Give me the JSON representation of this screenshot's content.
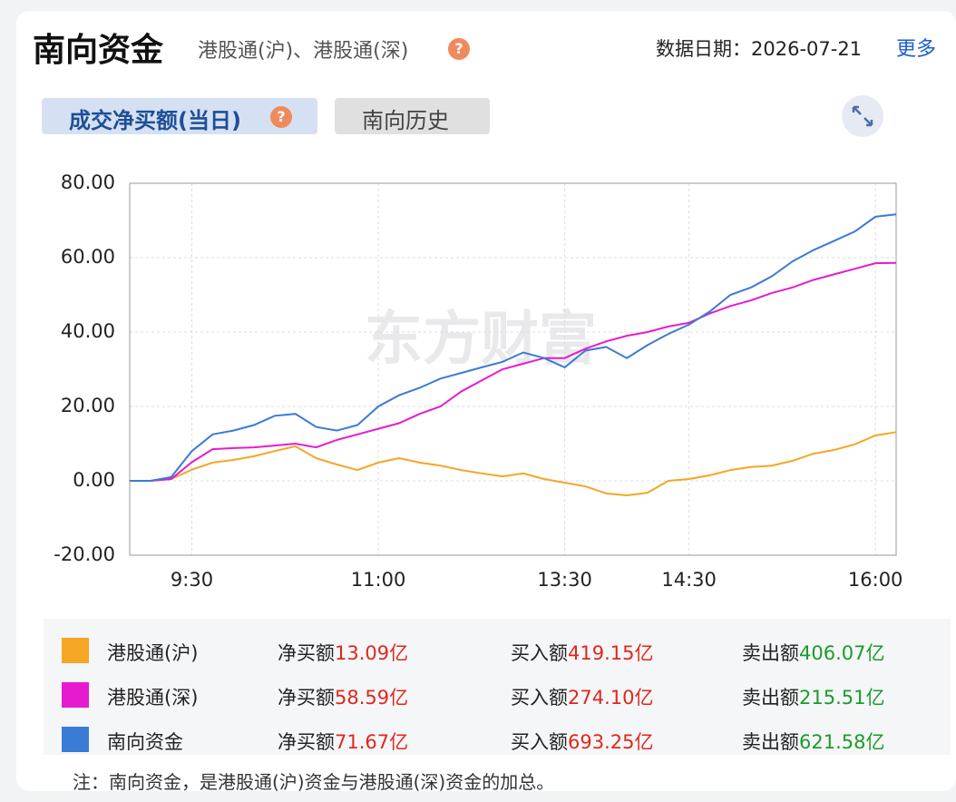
{
  "header": {
    "title": "南向资金",
    "subtitle": "港股通(沪)、港股通(深)",
    "help": "?",
    "date": "数据日期：2026-07-21",
    "more": "更多"
  },
  "tabs": [
    {
      "label": "成交净买额(当日)",
      "help": "?"
    },
    {
      "label": "南向历史"
    }
  ],
  "chart_data": {
    "type": "line",
    "watermark": "东方财富",
    "categories": [
      null,
      null,
      null,
      "9:30",
      null,
      null,
      null,
      null,
      null,
      null,
      null,
      null,
      "11:00",
      null,
      null,
      null,
      null,
      null,
      null,
      null,
      null,
      "13:30",
      null,
      null,
      null,
      null,
      null,
      "14:30",
      null,
      null,
      null,
      null,
      null,
      null,
      null,
      null,
      "16:00",
      null
    ],
    "series": [
      {
        "name": "港股通(沪)",
        "color": "#f5a623",
        "values": [
          0,
          0,
          0.5,
          3,
          4.9,
          5.6,
          6.6,
          8,
          9.3,
          6.1,
          4.4,
          2.9,
          4.9,
          6.1,
          4.9,
          4.1,
          2.9,
          2,
          1.2,
          2,
          0.5,
          -0.5,
          -1.5,
          -3.4,
          -3.9,
          -3.2,
          0,
          0.5,
          1.5,
          2.9,
          3.7,
          4.1,
          5.4,
          7.3,
          8.3,
          9.8,
          12.2,
          13.09
        ]
      },
      {
        "name": "港股通(深)",
        "color": "#e61bd0",
        "values": [
          0,
          0,
          0.5,
          5,
          8.5,
          8.8,
          9,
          9.5,
          10,
          9,
          11,
          12.5,
          14,
          15.5,
          18,
          20,
          24,
          27,
          30,
          31.5,
          33,
          33,
          35.5,
          37.5,
          39,
          40,
          41.5,
          42.5,
          45,
          47,
          48.5,
          50.5,
          52,
          54,
          55.5,
          57,
          58.5,
          58.59
        ]
      },
      {
        "name": "南向资金",
        "color": "#3a7bd5",
        "values": [
          0,
          0,
          1,
          8,
          12.5,
          13.5,
          15,
          17.5,
          18,
          14.5,
          13.5,
          15,
          20,
          23,
          25,
          27.5,
          29,
          30.5,
          32,
          34.5,
          33,
          30.5,
          35,
          36,
          33,
          36.5,
          39.5,
          42,
          45.5,
          50,
          52,
          55,
          59,
          62,
          64.5,
          67,
          71,
          71.67
        ]
      }
    ],
    "ylim": [
      -20,
      80
    ],
    "yticks": [
      {
        "value": -20,
        "label": "-20.00"
      },
      {
        "value": 0,
        "label": "0.00"
      },
      {
        "value": 20,
        "label": "20.00"
      },
      {
        "value": 40,
        "label": "40.00"
      },
      {
        "value": 60,
        "label": "60.00"
      },
      {
        "value": 80,
        "label": "80.00"
      }
    ],
    "grid": true
  },
  "summary": {
    "rows": [
      [
        {
          "label": "净买额",
          "value": "13.09亿"
        },
        {
          "label": "买入额",
          "value": "419.15亿"
        },
        {
          "label": "卖出额",
          "value": "406.07亿"
        }
      ],
      [
        {
          "label": "净买额",
          "value": "58.59亿"
        },
        {
          "label": "买入额",
          "value": "274.10亿"
        },
        {
          "label": "卖出额",
          "value": "215.51亿"
        }
      ],
      [
        {
          "label": "净买额",
          "value": "71.67亿"
        },
        {
          "label": "买入额",
          "value": "693.25亿"
        },
        {
          "label": "卖出额",
          "value": "621.58亿"
        }
      ]
    ]
  },
  "note": "注：南向资金，是港股通(沪)资金与港股通(深)资金的加总。"
}
